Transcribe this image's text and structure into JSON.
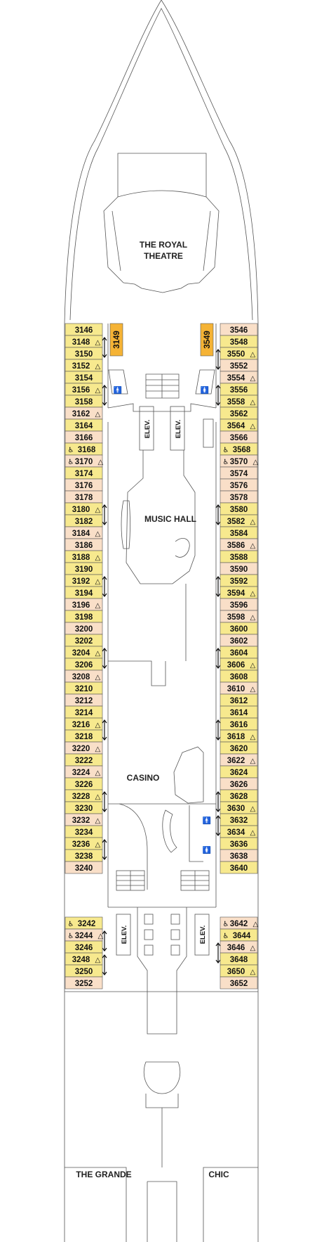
{
  "venues": {
    "theatre_line1": "THE ROYAL",
    "theatre_line2": "THEATRE",
    "music_hall": "MUSIC HALL",
    "casino": "CASINO",
    "grande": "THE GRANDE",
    "chic": "CHIC"
  },
  "elevator_label": "ELEV.",
  "colors": {
    "yellow": "#f7e98e",
    "pink": "#f9dfc8",
    "orange": "#f5b335",
    "outline": "#555555"
  },
  "legend_symbols": {
    "triangle": "triangle-icon (connecting/3rd-4th guest)",
    "arrow": "double-arrow-icon (connecting stateroom)",
    "wheelchair": "wheelchair-icon (accessible)",
    "restroom_men": "man-icon",
    "restroom_women": "woman-icon"
  },
  "port_cabins": [
    {
      "n": "3146",
      "c": "y",
      "tri": false,
      "arr": false,
      "wc": false
    },
    {
      "n": "3148",
      "c": "y",
      "tri": true,
      "arr": true,
      "wc": false
    },
    {
      "n": "3150",
      "c": "y",
      "tri": false,
      "arr": false,
      "wc": false
    },
    {
      "n": "3152",
      "c": "y",
      "tri": true,
      "arr": false,
      "wc": false
    },
    {
      "n": "3154",
      "c": "y",
      "tri": false,
      "arr": false,
      "wc": false
    },
    {
      "n": "3156",
      "c": "y",
      "tri": true,
      "arr": true,
      "wc": false
    },
    {
      "n": "3158",
      "c": "y",
      "tri": false,
      "arr": false,
      "wc": false
    },
    {
      "n": "3162",
      "c": "p",
      "tri": true,
      "arr": false,
      "wc": false
    },
    {
      "n": "3164",
      "c": "y",
      "tri": false,
      "arr": false,
      "wc": false
    },
    {
      "n": "3166",
      "c": "p",
      "tri": false,
      "arr": false,
      "wc": false
    },
    {
      "n": "3168",
      "c": "y",
      "tri": false,
      "arr": false,
      "wc": true
    },
    {
      "n": "3170",
      "c": "p",
      "tri": true,
      "arr": false,
      "wc": true
    },
    {
      "n": "3174",
      "c": "y",
      "tri": false,
      "arr": false,
      "wc": false
    },
    {
      "n": "3176",
      "c": "p",
      "tri": false,
      "arr": false,
      "wc": false
    },
    {
      "n": "3178",
      "c": "p",
      "tri": false,
      "arr": false,
      "wc": false
    },
    {
      "n": "3180",
      "c": "y",
      "tri": true,
      "arr": true,
      "wc": false
    },
    {
      "n": "3182",
      "c": "y",
      "tri": false,
      "arr": false,
      "wc": false
    },
    {
      "n": "3184",
      "c": "p",
      "tri": true,
      "arr": false,
      "wc": false
    },
    {
      "n": "3186",
      "c": "p",
      "tri": false,
      "arr": false,
      "wc": false
    },
    {
      "n": "3188",
      "c": "y",
      "tri": true,
      "arr": false,
      "wc": false
    },
    {
      "n": "3190",
      "c": "y",
      "tri": false,
      "arr": false,
      "wc": false
    },
    {
      "n": "3192",
      "c": "y",
      "tri": true,
      "arr": true,
      "wc": false
    },
    {
      "n": "3194",
      "c": "y",
      "tri": false,
      "arr": false,
      "wc": false
    },
    {
      "n": "3196",
      "c": "p",
      "tri": true,
      "arr": false,
      "wc": false
    },
    {
      "n": "3198",
      "c": "y",
      "tri": false,
      "arr": false,
      "wc": false
    },
    {
      "n": "3200",
      "c": "p",
      "tri": false,
      "arr": false,
      "wc": false
    },
    {
      "n": "3202",
      "c": "y",
      "tri": false,
      "arr": false,
      "wc": false
    },
    {
      "n": "3204",
      "c": "y",
      "tri": true,
      "arr": true,
      "wc": false
    },
    {
      "n": "3206",
      "c": "y",
      "tri": false,
      "arr": false,
      "wc": false
    },
    {
      "n": "3208",
      "c": "p",
      "tri": true,
      "arr": false,
      "wc": false
    },
    {
      "n": "3210",
      "c": "y",
      "tri": false,
      "arr": false,
      "wc": false
    },
    {
      "n": "3212",
      "c": "p",
      "tri": false,
      "arr": false,
      "wc": false
    },
    {
      "n": "3214",
      "c": "y",
      "tri": false,
      "arr": false,
      "wc": false
    },
    {
      "n": "3216",
      "c": "y",
      "tri": true,
      "arr": true,
      "wc": false
    },
    {
      "n": "3218",
      "c": "y",
      "tri": false,
      "arr": false,
      "wc": false
    },
    {
      "n": "3220",
      "c": "p",
      "tri": true,
      "arr": false,
      "wc": false
    },
    {
      "n": "3222",
      "c": "y",
      "tri": false,
      "arr": false,
      "wc": false
    },
    {
      "n": "3224",
      "c": "p",
      "tri": true,
      "arr": false,
      "wc": false
    },
    {
      "n": "3226",
      "c": "y",
      "tri": false,
      "arr": false,
      "wc": false
    },
    {
      "n": "3228",
      "c": "y",
      "tri": true,
      "arr": true,
      "wc": false
    },
    {
      "n": "3230",
      "c": "y",
      "tri": false,
      "arr": false,
      "wc": false
    },
    {
      "n": "3232",
      "c": "p",
      "tri": true,
      "arr": false,
      "wc": false
    },
    {
      "n": "3234",
      "c": "y",
      "tri": false,
      "arr": false,
      "wc": false
    },
    {
      "n": "3236",
      "c": "y",
      "tri": true,
      "arr": true,
      "wc": false
    },
    {
      "n": "3238",
      "c": "y",
      "tri": false,
      "arr": false,
      "wc": false
    },
    {
      "n": "3240",
      "c": "p",
      "tri": false,
      "arr": false,
      "wc": false
    },
    {
      "n": "3242",
      "c": "y",
      "tri": false,
      "arr": false,
      "wc": true
    },
    {
      "n": "3244",
      "c": "p",
      "tri": true,
      "arr": true,
      "wc": true
    },
    {
      "n": "3246",
      "c": "y",
      "tri": false,
      "arr": false,
      "wc": false
    },
    {
      "n": "3248",
      "c": "y",
      "tri": true,
      "arr": true,
      "wc": false
    },
    {
      "n": "3250",
      "c": "y",
      "tri": false,
      "arr": false,
      "wc": false
    },
    {
      "n": "3252",
      "c": "p",
      "tri": false,
      "arr": false,
      "wc": false
    }
  ],
  "starboard_cabins": [
    {
      "n": "3546",
      "c": "p",
      "tri": false,
      "arr": false,
      "wc": false
    },
    {
      "n": "3548",
      "c": "y",
      "tri": false,
      "arr": false,
      "wc": false
    },
    {
      "n": "3550",
      "c": "y",
      "tri": true,
      "arr": true,
      "wc": false
    },
    {
      "n": "3552",
      "c": "p",
      "tri": false,
      "arr": false,
      "wc": false
    },
    {
      "n": "3554",
      "c": "p",
      "tri": true,
      "arr": false,
      "wc": false
    },
    {
      "n": "3556",
      "c": "y",
      "tri": false,
      "arr": true,
      "wc": false
    },
    {
      "n": "3558",
      "c": "y",
      "tri": true,
      "arr": false,
      "wc": false
    },
    {
      "n": "3562",
      "c": "y",
      "tri": false,
      "arr": false,
      "wc": false
    },
    {
      "n": "3564",
      "c": "y",
      "tri": true,
      "arr": false,
      "wc": false
    },
    {
      "n": "3566",
      "c": "p",
      "tri": false,
      "arr": false,
      "wc": false
    },
    {
      "n": "3568",
      "c": "y",
      "tri": false,
      "arr": false,
      "wc": true
    },
    {
      "n": "3570",
      "c": "p",
      "tri": true,
      "arr": false,
      "wc": true
    },
    {
      "n": "3574",
      "c": "p",
      "tri": false,
      "arr": false,
      "wc": false
    },
    {
      "n": "3576",
      "c": "p",
      "tri": false,
      "arr": false,
      "wc": false
    },
    {
      "n": "3578",
      "c": "p",
      "tri": false,
      "arr": false,
      "wc": false
    },
    {
      "n": "3580",
      "c": "y",
      "tri": false,
      "arr": true,
      "wc": false
    },
    {
      "n": "3582",
      "c": "y",
      "tri": true,
      "arr": false,
      "wc": false
    },
    {
      "n": "3584",
      "c": "y",
      "tri": false,
      "arr": false,
      "wc": false
    },
    {
      "n": "3586",
      "c": "p",
      "tri": true,
      "arr": false,
      "wc": false
    },
    {
      "n": "3588",
      "c": "y",
      "tri": false,
      "arr": false,
      "wc": false
    },
    {
      "n": "3590",
      "c": "p",
      "tri": false,
      "arr": false,
      "wc": false
    },
    {
      "n": "3592",
      "c": "y",
      "tri": false,
      "arr": true,
      "wc": false
    },
    {
      "n": "3594",
      "c": "y",
      "tri": true,
      "arr": false,
      "wc": false
    },
    {
      "n": "3596",
      "c": "p",
      "tri": false,
      "arr": false,
      "wc": false
    },
    {
      "n": "3598",
      "c": "p",
      "tri": true,
      "arr": false,
      "wc": false
    },
    {
      "n": "3600",
      "c": "y",
      "tri": false,
      "arr": false,
      "wc": false
    },
    {
      "n": "3602",
      "c": "p",
      "tri": false,
      "arr": false,
      "wc": false
    },
    {
      "n": "3604",
      "c": "y",
      "tri": false,
      "arr": true,
      "wc": false
    },
    {
      "n": "3606",
      "c": "y",
      "tri": true,
      "arr": false,
      "wc": false
    },
    {
      "n": "3608",
      "c": "y",
      "tri": false,
      "arr": false,
      "wc": false
    },
    {
      "n": "3610",
      "c": "p",
      "tri": true,
      "arr": false,
      "wc": false
    },
    {
      "n": "3612",
      "c": "y",
      "tri": false,
      "arr": false,
      "wc": false
    },
    {
      "n": "3614",
      "c": "y",
      "tri": false,
      "arr": false,
      "wc": false
    },
    {
      "n": "3616",
      "c": "y",
      "tri": false,
      "arr": true,
      "wc": false
    },
    {
      "n": "3618",
      "c": "y",
      "tri": true,
      "arr": false,
      "wc": false
    },
    {
      "n": "3620",
      "c": "y",
      "tri": false,
      "arr": false,
      "wc": false
    },
    {
      "n": "3622",
      "c": "p",
      "tri": true,
      "arr": false,
      "wc": false
    },
    {
      "n": "3624",
      "c": "y",
      "tri": false,
      "arr": false,
      "wc": false
    },
    {
      "n": "3626",
      "c": "p",
      "tri": false,
      "arr": false,
      "wc": false
    },
    {
      "n": "3628",
      "c": "y",
      "tri": false,
      "arr": true,
      "wc": false
    },
    {
      "n": "3630",
      "c": "y",
      "tri": true,
      "arr": false,
      "wc": false
    },
    {
      "n": "3632",
      "c": "y",
      "tri": false,
      "arr": true,
      "wc": false
    },
    {
      "n": "3634",
      "c": "y",
      "tri": true,
      "arr": false,
      "wc": false
    },
    {
      "n": "3636",
      "c": "y",
      "tri": false,
      "arr": false,
      "wc": false
    },
    {
      "n": "3638",
      "c": "p",
      "tri": false,
      "arr": false,
      "wc": false
    },
    {
      "n": "3640",
      "c": "y",
      "tri": false,
      "arr": false,
      "wc": false
    },
    {
      "n": "3642",
      "c": "p",
      "tri": true,
      "arr": false,
      "wc": true
    },
    {
      "n": "3644",
      "c": "y",
      "tri": false,
      "arr": false,
      "wc": true
    },
    {
      "n": "3646",
      "c": "p",
      "tri": true,
      "arr": true,
      "wc": false
    },
    {
      "n": "3648",
      "c": "y",
      "tri": false,
      "arr": false,
      "wc": false
    },
    {
      "n": "3650",
      "c": "y",
      "tri": true,
      "arr": false,
      "wc": false
    },
    {
      "n": "3652",
      "c": "p",
      "tri": false,
      "arr": false,
      "wc": false
    }
  ],
  "orange_cabins": [
    "3149",
    "3549"
  ]
}
